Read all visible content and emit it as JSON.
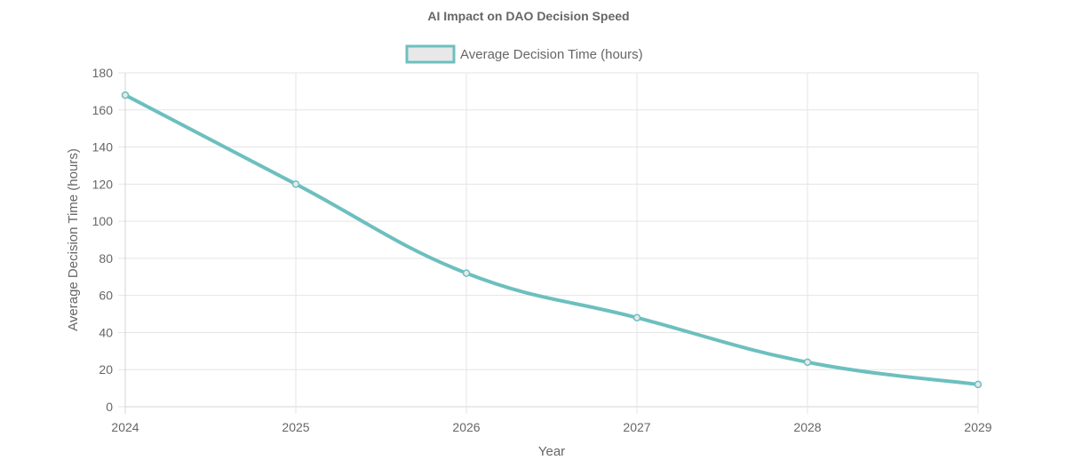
{
  "chart_data": {
    "type": "line",
    "title": "AI Impact on DAO Decision Speed",
    "xlabel": "Year",
    "ylabel": "Average Decision Time (hours)",
    "categories": [
      "2024",
      "2025",
      "2026",
      "2027",
      "2028",
      "2029"
    ],
    "series": [
      {
        "name": "Average Decision Time (hours)",
        "values": [
          168,
          120,
          72,
          48,
          24,
          12
        ],
        "color": "#6dbfbf",
        "fill": "#e8e8e8"
      }
    ],
    "ylim": [
      0,
      180
    ],
    "yticks": [
      0,
      20,
      40,
      60,
      80,
      100,
      120,
      140,
      160,
      180
    ],
    "grid": true,
    "legend_position": "top-center"
  }
}
